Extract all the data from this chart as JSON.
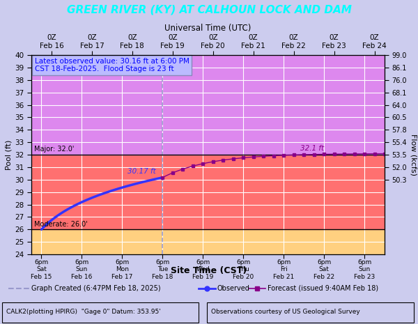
{
  "title": "GREEN RIVER (KY) AT CALHOUN LOCK AND DAM",
  "title_bg": "#000080",
  "title_color": "#00FFFF",
  "top_xlabel": "Universal Time (UTC)",
  "bottom_xlabel": "Site Time (CST)",
  "ylabel_left": "Pool (ft)",
  "ylabel_right": "Flow (kcfs)",
  "ylim": [
    24,
    40
  ],
  "yticks": [
    24,
    25,
    26,
    27,
    28,
    29,
    30,
    31,
    32,
    33,
    34,
    35,
    36,
    37,
    38,
    39,
    40
  ],
  "right_yticks_labels": [
    "99.0",
    "86.1",
    "76.0",
    "68.1",
    "64.0",
    "60.5",
    "57.8",
    "55.4",
    "53.5",
    "52.0",
    "50.3"
  ],
  "right_ytick_pool": [
    40.0,
    39.0,
    38.0,
    37.0,
    36.0,
    35.0,
    34.0,
    33.0,
    32.0,
    31.0,
    30.0
  ],
  "moderate_level": 26.0,
  "major_level": 32.0,
  "bg_below_moderate": "#FFD080",
  "bg_moderate_to_major": "#FF7070",
  "bg_above_major": "#DD88EE",
  "bg_outer": "#CCCCEE",
  "grid_color": "#FFFFFF",
  "observed_color": "#3333FF",
  "forecast_color": "#880088",
  "dashed_line_color": "#9999CC",
  "annotation_box_bg": "#BBBBFF",
  "annotation_box_border": "#8888BB",
  "annotation_text_line1": "Latest observed value: 30.16 ft at 6:00 PM",
  "annotation_text_line2": "CST 18-Feb-2025.  Flood Stage is 23 ft",
  "label_moderate": "Moderate: 26.0'",
  "label_major": "Major: 32.0'",
  "label_peak_obs": "30.17 ft",
  "label_peak_fcst": "32.1 ft",
  "top_tick_labels": [
    "0Z\nFeb 16",
    "0Z\nFeb 17",
    "0Z\nFeb 18",
    "0Z\nFeb 19",
    "0Z\nFeb 20",
    "0Z\nFeb 21",
    "0Z\nFeb 22",
    "0Z\nFeb 23",
    "0Z\nFeb 24"
  ],
  "top_tick_positions": [
    0,
    24,
    48,
    72,
    96,
    120,
    144,
    168,
    192
  ],
  "bottom_tick_labels": [
    "6pm\nSat\nFeb 15",
    "6pm\nSun\nFeb 16",
    "6pm\nMon\nFeb 17",
    "6pm\nTue\nFeb 18",
    "6pm\nWed\nFeb 19",
    "6pm\nThu\nFeb 20",
    "6pm\nFri\nFeb 21",
    "6pm\nSat\nFeb 22",
    "6pm\nSun\nFeb 23"
  ],
  "bottom_tick_positions": [
    -6,
    18,
    42,
    66,
    90,
    114,
    138,
    162,
    186
  ],
  "xlim": [
    -12,
    198
  ],
  "dashed_x": 66,
  "legend_text_dashed": "Graph Created (6:47PM Feb 18, 2025)",
  "legend_text_obs": "Observed",
  "legend_text_fcst": "Forecast (issued 9:40AM Feb 18)",
  "footer_left": "CALK2(plotting HPIRG)  \"Gage 0\" Datum: 353.95'",
  "footer_right": "Observations courtesy of US Geological Survey"
}
